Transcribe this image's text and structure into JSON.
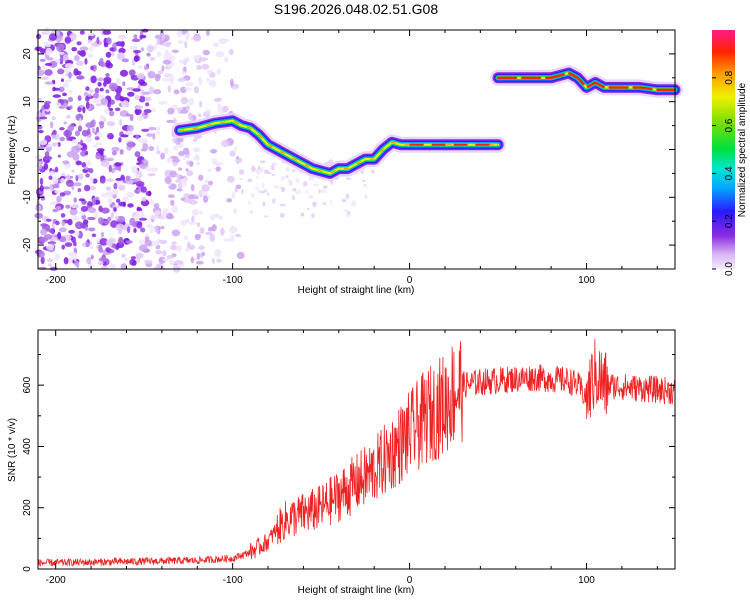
{
  "figure_title": "S196.2026.048.02.51.G08",
  "chart_data": [
    {
      "type": "heatmap",
      "title": "S196.2026.048.02.51.G08",
      "xlabel": "Height of straight line (km)",
      "ylabel": "Frequency (Hz)",
      "xlim": [
        -210,
        150
      ],
      "ylim": [
        -25,
        25
      ],
      "xticks": [
        -200,
        -100,
        0,
        100
      ],
      "yticks": [
        -20,
        -10,
        0,
        10,
        20
      ],
      "colorbar": {
        "label": "Normalized spectral amplitude",
        "range": [
          0,
          1
        ],
        "ticks": [
          "0.0",
          "0.2",
          "0.4",
          "0.6",
          "0.8"
        ],
        "tick_values": [
          0,
          0.2,
          0.4,
          0.6,
          0.8
        ]
      },
      "ridge": {
        "description": "dominant frequency trace",
        "x": [
          -130,
          -120,
          -110,
          -100,
          -95,
          -90,
          -85,
          -80,
          -75,
          -70,
          -65,
          -60,
          -55,
          -50,
          -45,
          -40,
          -35,
          -30,
          -25,
          -20,
          -15,
          -10,
          -5,
          0,
          10,
          20,
          30,
          40,
          50
        ],
        "y": [
          4,
          4.5,
          5.5,
          6,
          5,
          4.5,
          3,
          1,
          0,
          -1,
          -2,
          -3,
          -4,
          -4.5,
          -5,
          -4,
          -4,
          -3,
          -2,
          -2,
          0,
          1.5,
          1,
          1,
          1,
          1,
          1,
          1,
          1
        ],
        "x2": [
          50,
          60,
          70,
          80,
          90,
          95,
          100,
          105,
          110,
          120,
          130,
          140,
          150
        ],
        "y2": [
          15,
          15,
          15,
          15,
          16,
          15,
          13,
          14,
          13,
          13,
          13,
          12.5,
          12.5
        ]
      }
    },
    {
      "type": "line",
      "title": "",
      "xlabel": "Height of straight line (km)",
      "ylabel": "SNR (10 * v/v)",
      "xlim": [
        -210,
        150
      ],
      "ylim": [
        0,
        780
      ],
      "xticks": [
        -200,
        -100,
        0,
        100
      ],
      "yticks": [
        0,
        200,
        400,
        600
      ],
      "series": [
        {
          "name": "SNR",
          "color": "#ee2222",
          "x": [
            -210,
            -180,
            -150,
            -120,
            -100,
            -90,
            -80,
            -75,
            -70,
            -60,
            -50,
            -40,
            -30,
            -20,
            -10,
            0,
            10,
            20,
            25,
            30,
            40,
            50,
            60,
            70,
            80,
            90,
            95,
            100,
            105,
            110,
            120,
            130,
            140,
            150
          ],
          "values": [
            20,
            22,
            25,
            28,
            35,
            55,
            90,
            130,
            160,
            180,
            200,
            240,
            280,
            320,
            380,
            440,
            500,
            540,
            580,
            600,
            610,
            615,
            620,
            625,
            620,
            615,
            600,
            560,
            640,
            600,
            595,
            590,
            585,
            580
          ]
        }
      ]
    }
  ]
}
